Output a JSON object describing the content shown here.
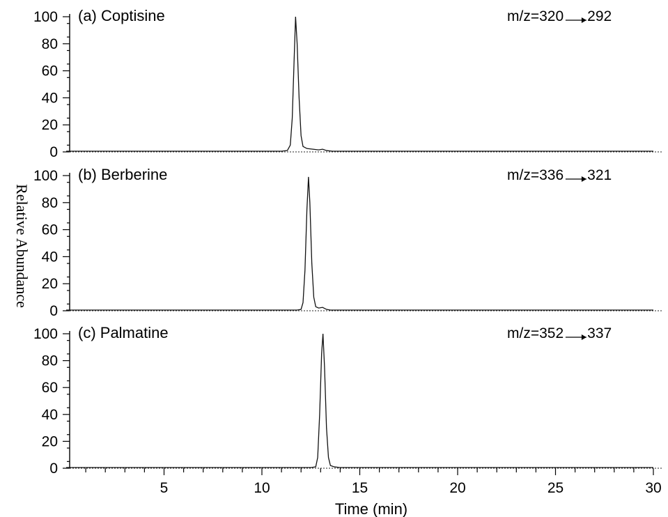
{
  "chart_data": {
    "type": "line",
    "xlabel": "Time (min)",
    "ylabel": "Relative Abundance",
    "xlim": [
      0,
      30
    ],
    "xticks": [
      5,
      10,
      15,
      20,
      25,
      30
    ],
    "ylim": [
      0,
      100
    ],
    "yticks": [
      0,
      20,
      40,
      60,
      80,
      100
    ],
    "grid": false,
    "panels": [
      {
        "label": "(a) Coptisine",
        "mz_prefix": "m/z=320",
        "mz_suffix": "292",
        "series": {
          "x": [
            0,
            5,
            10,
            11.0,
            11.3,
            11.45,
            11.55,
            11.65,
            11.72,
            11.8,
            11.9,
            12.0,
            12.1,
            12.3,
            12.6,
            12.9,
            13.1,
            13.3,
            13.6,
            15,
            20,
            25,
            30
          ],
          "values": [
            0.5,
            0.5,
            0.5,
            0.5,
            1,
            5,
            25,
            70,
            100,
            80,
            40,
            12,
            4,
            2.5,
            2,
            1.5,
            2,
            1,
            0.5,
            0.5,
            0.5,
            0.5,
            0.5
          ]
        }
      },
      {
        "label": "(b) Berberine",
        "mz_prefix": "m/z=336",
        "mz_suffix": "321",
        "series": {
          "x": [
            0,
            5,
            10,
            11.8,
            12.0,
            12.1,
            12.2,
            12.3,
            12.38,
            12.45,
            12.55,
            12.65,
            12.75,
            12.9,
            13.1,
            13.3,
            13.5,
            15,
            20,
            25,
            30
          ],
          "values": [
            0.5,
            0.5,
            0.5,
            0.5,
            1,
            6,
            30,
            75,
            99,
            80,
            35,
            10,
            3,
            2,
            2.5,
            1,
            0.5,
            0.5,
            0.5,
            0.5,
            0.5
          ]
        }
      },
      {
        "label": "(c) Palmatine",
        "mz_prefix": "m/z=352",
        "mz_suffix": "337",
        "series": {
          "x": [
            0,
            5,
            10,
            12.5,
            12.75,
            12.85,
            12.95,
            13.05,
            13.12,
            13.2,
            13.3,
            13.4,
            13.5,
            13.7,
            14.0,
            15,
            20,
            25,
            30
          ],
          "values": [
            0.5,
            0.5,
            0.5,
            0.5,
            1,
            8,
            40,
            85,
            100,
            75,
            30,
            8,
            2,
            1,
            0.5,
            0.5,
            0.5,
            0.5,
            0.5
          ]
        }
      }
    ]
  }
}
